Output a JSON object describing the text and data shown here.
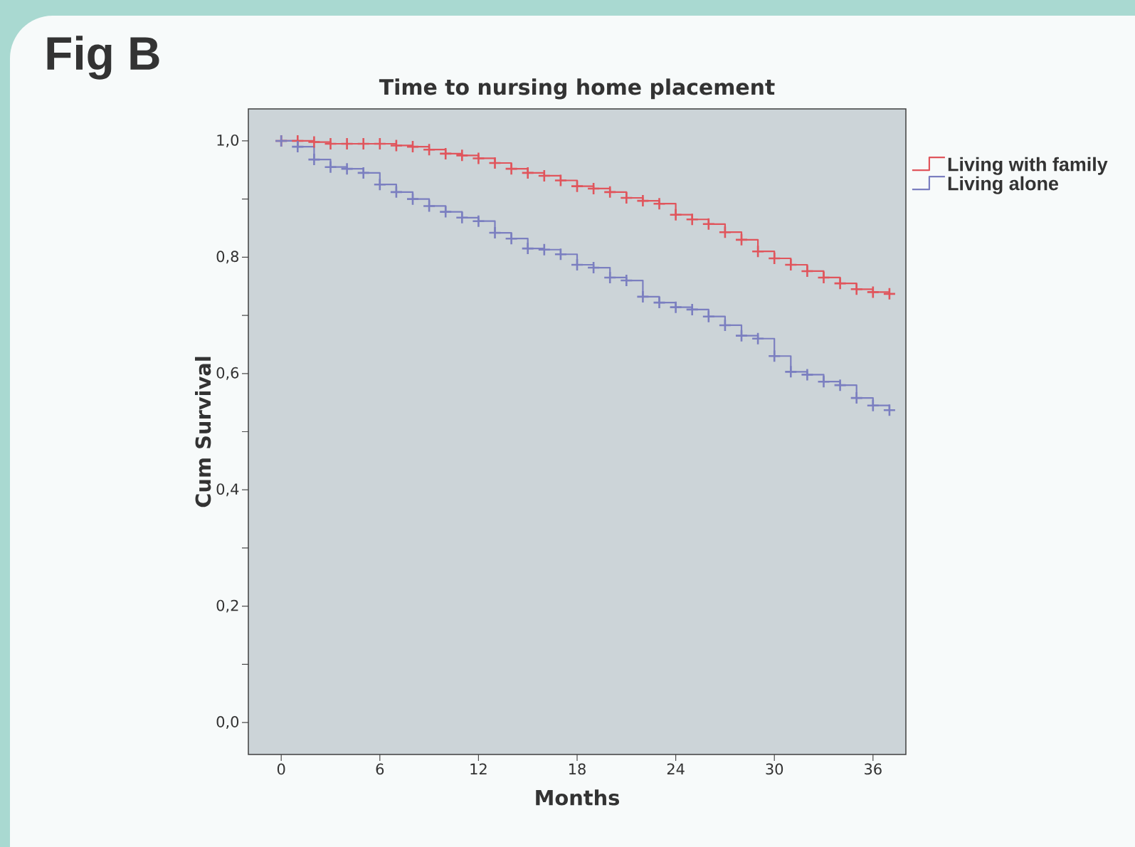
{
  "chart_data": {
    "type": "step",
    "title": "Time to nursing home placement",
    "xlabel": "Months",
    "ylabel": "Cum Survival",
    "annotations": [
      "Fig B"
    ],
    "x": [
      0,
      1,
      2,
      3,
      4,
      5,
      6,
      7,
      8,
      9,
      10,
      11,
      12,
      13,
      14,
      15,
      16,
      17,
      18,
      19,
      20,
      21,
      22,
      23,
      24,
      25,
      26,
      27,
      28,
      29,
      30,
      31,
      32,
      33,
      34,
      35,
      36,
      37
    ],
    "series": [
      {
        "name": "Living with family",
        "color": "#e0555c",
        "values": [
          1.0,
          1.0,
          0.998,
          0.995,
          0.995,
          0.995,
          0.995,
          0.992,
          0.99,
          0.985,
          0.978,
          0.975,
          0.97,
          0.962,
          0.952,
          0.945,
          0.94,
          0.932,
          0.922,
          0.918,
          0.912,
          0.902,
          0.897,
          0.892,
          0.873,
          0.865,
          0.857,
          0.843,
          0.83,
          0.81,
          0.798,
          0.787,
          0.776,
          0.765,
          0.755,
          0.745,
          0.74,
          0.737
        ]
      },
      {
        "name": "Living alone",
        "color": "#7b7fc0",
        "values": [
          1.0,
          0.99,
          0.968,
          0.955,
          0.952,
          0.945,
          0.925,
          0.912,
          0.9,
          0.888,
          0.878,
          0.868,
          0.862,
          0.842,
          0.832,
          0.815,
          0.813,
          0.805,
          0.787,
          0.782,
          0.765,
          0.76,
          0.732,
          0.722,
          0.714,
          0.71,
          0.698,
          0.683,
          0.665,
          0.66,
          0.63,
          0.603,
          0.598,
          0.586,
          0.58,
          0.558,
          0.545,
          0.537
        ]
      }
    ],
    "xlim": [
      -2,
      38
    ],
    "ylim": [
      -0.055,
      1.055
    ],
    "xticks": [
      0,
      6,
      12,
      18,
      24,
      30,
      36
    ],
    "yticks": [
      {
        "value": 0,
        "label": "0,0"
      },
      {
        "value": 0.1,
        "label": null
      },
      {
        "value": 0.2,
        "label": "0,2"
      },
      {
        "value": 0.3,
        "label": null
      },
      {
        "value": 0.4,
        "label": "0,4"
      },
      {
        "value": 0.5,
        "label": null
      },
      {
        "value": 0.6,
        "label": "0,6"
      },
      {
        "value": 0.7,
        "label": null
      },
      {
        "value": 0.8,
        "label": "0,8"
      },
      {
        "value": 0.9,
        "label": null
      },
      {
        "value": 1.0,
        "label": "1,0"
      }
    ],
    "marker": "cross",
    "legend": "top right"
  }
}
